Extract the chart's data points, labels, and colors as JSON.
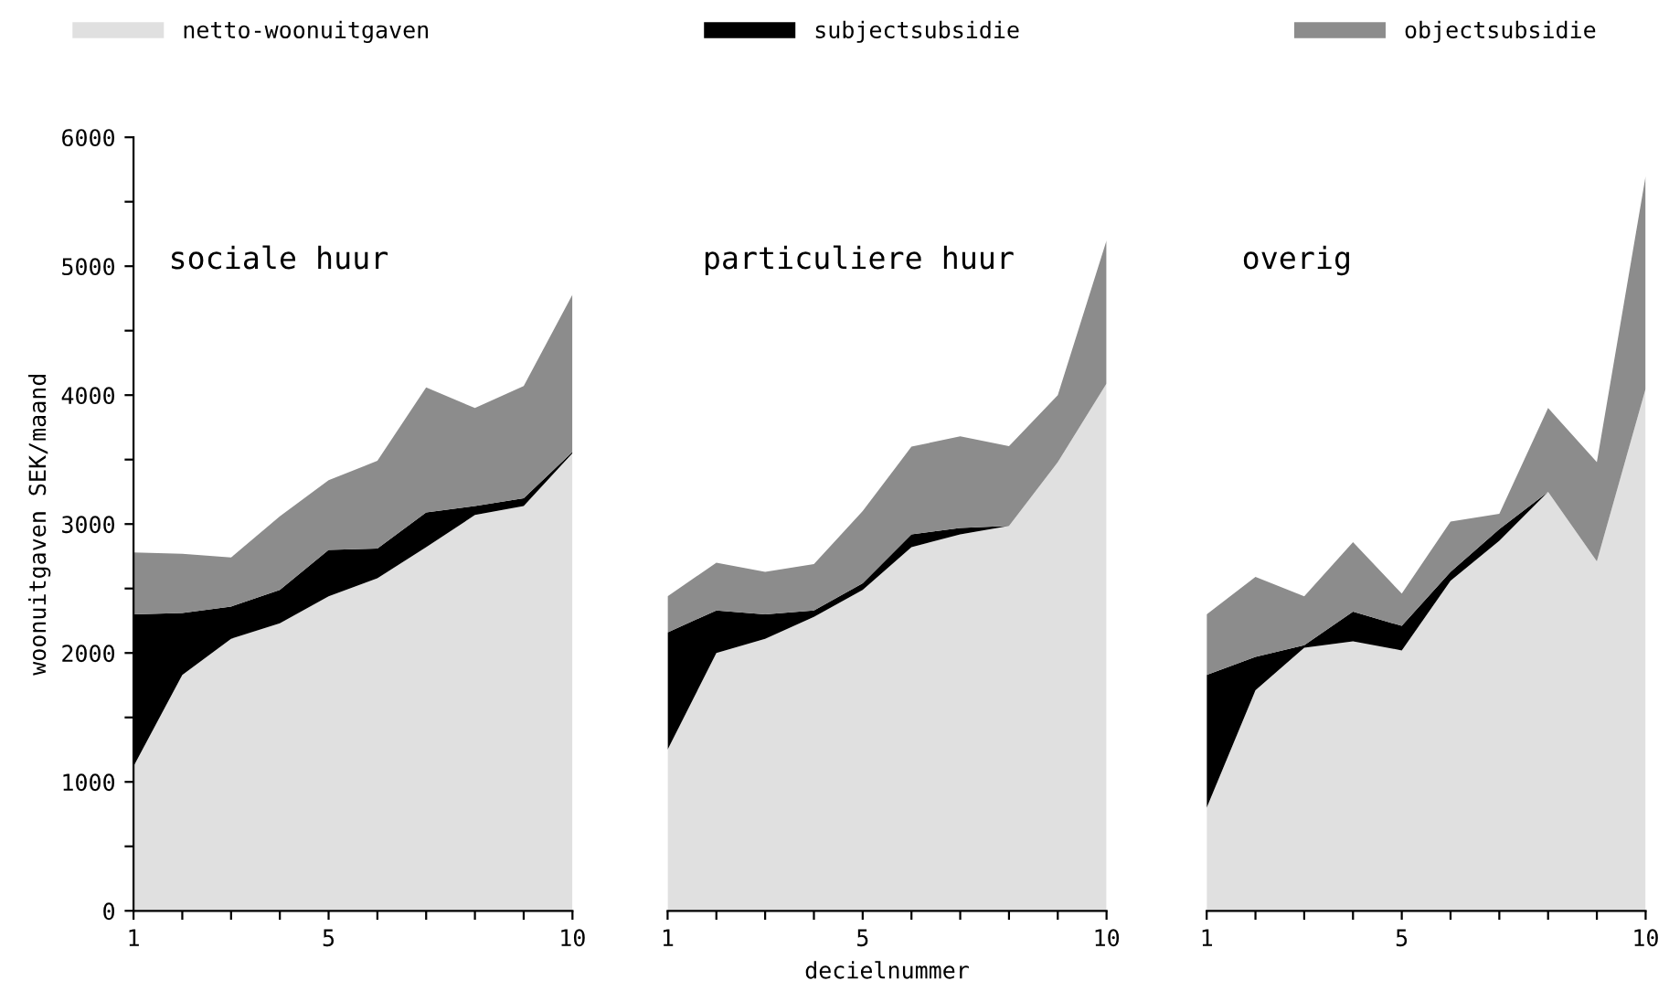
{
  "chart_data": [
    {
      "type": "area",
      "stacked": true,
      "title": "sociale huur",
      "ylabel": "woonuitgaven SEK/maand",
      "x": [
        1,
        2,
        3,
        4,
        5,
        6,
        7,
        8,
        9,
        10
      ],
      "xlim": [
        1,
        10
      ],
      "ylim": [
        0,
        6000
      ],
      "xticks": [
        1,
        {
          "value": 2,
          "label": null
        },
        {
          "value": 3,
          "label": null
        },
        {
          "value": 4,
          "label": null
        },
        5,
        {
          "value": 6,
          "label": null
        },
        {
          "value": 7,
          "label": null
        },
        {
          "value": 8,
          "label": null
        },
        {
          "value": 9,
          "label": null
        },
        10
      ],
      "yticks": [
        0,
        {
          "value": 500,
          "label": null
        },
        1000,
        {
          "value": 1500,
          "label": null
        },
        2000,
        {
          "value": 2500,
          "label": null
        },
        3000,
        {
          "value": 3500,
          "label": null
        },
        4000,
        {
          "value": 4500,
          "label": null
        },
        5000,
        {
          "value": 5500,
          "label": null
        },
        6000
      ],
      "legend": "top",
      "grid": false,
      "series": [
        {
          "name": "netto-woonuitgaven",
          "color": "#e0e0e0",
          "values": [
            1120,
            1830,
            2110,
            2230,
            2440,
            2580,
            2820,
            3070,
            3140,
            3550
          ]
        },
        {
          "name": "subjectsubsidie",
          "color": "#000000",
          "values": [
            1180,
            480,
            250,
            260,
            360,
            230,
            270,
            70,
            60,
            10
          ]
        },
        {
          "name": "objectsubsidie",
          "color": "#8c8c8c",
          "values": [
            480,
            460,
            380,
            570,
            540,
            680,
            970,
            760,
            870,
            1220
          ]
        }
      ]
    },
    {
      "type": "area",
      "stacked": true,
      "title": "particuliere huur",
      "xlabel": "decielnummer",
      "x": [
        1,
        2,
        3,
        4,
        5,
        6,
        7,
        8,
        9,
        10
      ],
      "xlim": [
        1,
        10
      ],
      "ylim": [
        0,
        6000
      ],
      "xticks": [
        1,
        {
          "value": 2,
          "label": null
        },
        {
          "value": 3,
          "label": null
        },
        {
          "value": 4,
          "label": null
        },
        5,
        {
          "value": 6,
          "label": null
        },
        {
          "value": 7,
          "label": null
        },
        {
          "value": 8,
          "label": null
        },
        {
          "value": 9,
          "label": null
        },
        10
      ],
      "tick_labels": "x",
      "grid": false,
      "series": [
        {
          "color": "#e0e0e0",
          "values": [
            1250,
            2000,
            2110,
            2280,
            2490,
            2820,
            2920,
            2985,
            3480,
            4090
          ]
        },
        {
          "color": "#000000",
          "values": [
            910,
            330,
            190,
            50,
            50,
            100,
            50,
            0,
            0,
            0
          ]
        },
        {
          "color": "#8c8c8c",
          "values": [
            280,
            370,
            330,
            360,
            560,
            680,
            710,
            620,
            520,
            1110
          ]
        }
      ]
    },
    {
      "type": "area",
      "stacked": true,
      "title": "overig",
      "x": [
        1,
        2,
        3,
        4,
        5,
        6,
        7,
        8,
        9,
        10
      ],
      "xlim": [
        1,
        10
      ],
      "ylim": [
        0,
        6000
      ],
      "xticks": [
        1,
        {
          "value": 2,
          "label": null
        },
        {
          "value": 3,
          "label": null
        },
        {
          "value": 4,
          "label": null
        },
        5,
        {
          "value": 6,
          "label": null
        },
        {
          "value": 7,
          "label": null
        },
        {
          "value": 8,
          "label": null
        },
        {
          "value": 9,
          "label": null
        },
        10
      ],
      "tick_labels": "x",
      "grid": false,
      "series": [
        {
          "color": "#e0e0e0",
          "values": [
            800,
            1710,
            2040,
            2090,
            2020,
            2560,
            2870,
            3250,
            2710,
            4050
          ]
        },
        {
          "color": "#000000",
          "values": [
            1030,
            260,
            20,
            230,
            190,
            70,
            90,
            0,
            0,
            0
          ]
        },
        {
          "color": "#8c8c8c",
          "values": [
            470,
            620,
            380,
            540,
            250,
            390,
            120,
            650,
            770,
            1650
          ]
        }
      ]
    }
  ]
}
